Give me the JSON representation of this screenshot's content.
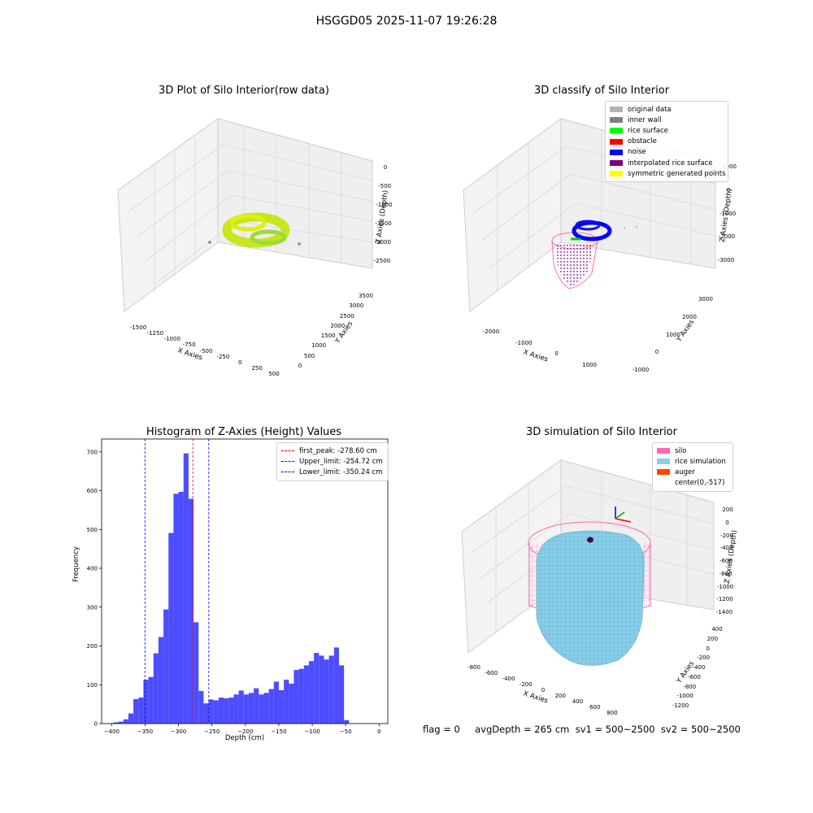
{
  "suptitle": "HSGGD05 2025-11-07 19:26:28",
  "colors": {
    "pane_top": "#ebebeb",
    "pane_left": "#f3f3f3",
    "pane_right": "#efefef",
    "grid": "#cfcfcf",
    "hist_bar": "#4d4dff",
    "peak": "#ff0000",
    "limit": "#0000ff"
  },
  "panels": {
    "raw": {
      "title": "3D Plot of Silo Interior(row data)",
      "xlabel": "X Axies",
      "ylabel": "Y Axies",
      "zlabel": "Z Axies (Depth)",
      "xticks": [
        "-1500",
        "-1250",
        "-1000",
        "-750",
        "-500",
        "-250",
        "0",
        "250",
        "500"
      ],
      "yticks": [
        "0",
        "500",
        "1000",
        "1500",
        "2000",
        "2500",
        "3000",
        "3500"
      ],
      "zticks": [
        "0",
        "-500",
        "-1000",
        "-1500",
        "-2000",
        "-2500"
      ]
    },
    "classify": {
      "title": "3D classify of Silo Interior",
      "xlabel": "X Axies",
      "ylabel": "Y Axies",
      "zlabel": "Z Axies (Depth)",
      "xticks": [
        "-2000",
        "-1000",
        "0",
        "1000"
      ],
      "yticks": [
        "-1000",
        "0",
        "1000",
        "2000",
        "3000"
      ],
      "zticks": [
        "1000",
        "0",
        "-1000",
        "-2000",
        "-3000"
      ],
      "legend": [
        {
          "label": "original data",
          "color": "#b3b3b3"
        },
        {
          "label": "inner wall",
          "color": "#808080"
        },
        {
          "label": "rice surface",
          "color": "#00ff00"
        },
        {
          "label": "obstacle",
          "color": "#ff0000"
        },
        {
          "label": "noise",
          "color": "#0000ff"
        },
        {
          "label": "interpolated rice surface",
          "color": "#800080"
        },
        {
          "label": "symmetric generated points",
          "color": "#ffff00"
        }
      ]
    },
    "simulation": {
      "title": "3D simulation of Silo Interior",
      "xlabel": "X Axies",
      "ylabel": "Y Axies",
      "zlabel": "Z Axies (Depth)",
      "xticks": [
        "-800",
        "-600",
        "-400",
        "-200",
        "0",
        "200",
        "400",
        "600",
        "800"
      ],
      "yticks": [
        "-1200",
        "-1000",
        "-800",
        "-600",
        "-400",
        "-200",
        "0",
        "200",
        "400"
      ],
      "zticks": [
        "200",
        "0",
        "-200",
        "-400",
        "-600",
        "-800",
        "-1000",
        "-1200",
        "-1400"
      ],
      "legend": [
        {
          "label": "silo",
          "color": "#ff69b4"
        },
        {
          "label": "rice simulation",
          "color": "#87ceeb"
        },
        {
          "label": "auger",
          "color": "#ff4500"
        },
        {
          "label": "center(0,-517)",
          "color": "#ffffff"
        }
      ]
    }
  },
  "chart_data": {
    "type": "bar",
    "title": "Histogram of Z-Axies (Height) Values",
    "xlabel": "Depth (cm)",
    "ylabel": "Frequency",
    "xlim": [
      -415,
      13
    ],
    "ylim": [
      0,
      733
    ],
    "xticks": [
      -400,
      -350,
      -300,
      -250,
      -200,
      -150,
      -100,
      -50,
      0
    ],
    "yticks": [
      0,
      100,
      200,
      300,
      400,
      500,
      600,
      700
    ],
    "bins": {
      "start": -405,
      "width": 7.5
    },
    "values": [
      1,
      3,
      5,
      11,
      26,
      63,
      67,
      113,
      120,
      181,
      223,
      294,
      491,
      592,
      597,
      696,
      579,
      261,
      84,
      52,
      62,
      60,
      67,
      65,
      67,
      75,
      85,
      75,
      79,
      91,
      75,
      79,
      89,
      108,
      86,
      113,
      103,
      138,
      141,
      150,
      161,
      182,
      175,
      165,
      175,
      196,
      150,
      9
    ],
    "vlines": [
      {
        "name": "first_peak",
        "x": -278.6,
        "color": "#ff0000"
      },
      {
        "name": "Upper_limit",
        "x": -254.72,
        "color": "#0000ff"
      },
      {
        "name": "Lower_limit",
        "x": -350.24,
        "color": "#0000ff"
      }
    ],
    "legend": [
      {
        "label": "first_peak: -278.60 cm",
        "color": "#ff0000"
      },
      {
        "label": "Upper_limit: -254.72 cm",
        "color": "#0000ff"
      },
      {
        "label": "Lower_limit: -350.24 cm",
        "color": "#0000ff"
      }
    ]
  },
  "status": "flag = 0     avgDepth = 265 cm  sv1 = 500~2500  sv2 = 500~2500"
}
